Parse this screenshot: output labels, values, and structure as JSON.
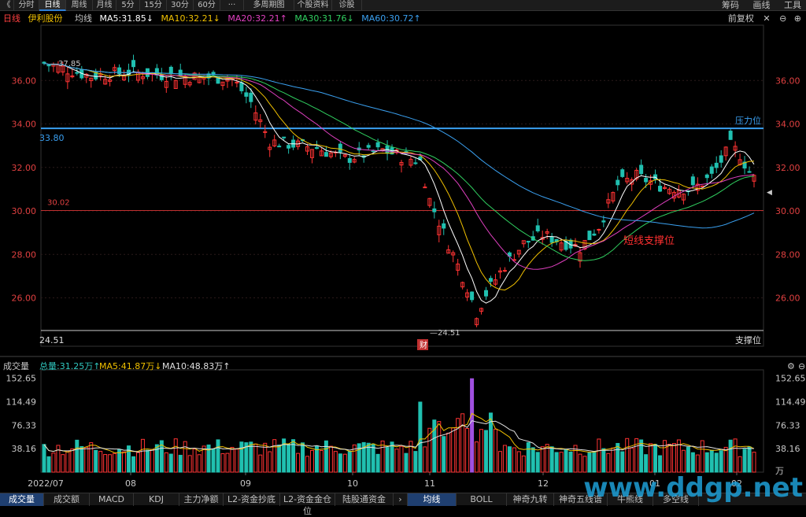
{
  "toolbar": {
    "back": "《",
    "tabs": [
      "分时",
      "日线",
      "周线",
      "月线",
      "5分",
      "15分",
      "30分",
      "60分",
      "···",
      "多周期图",
      "个股资料",
      "诊股"
    ],
    "active_index": 1,
    "right": [
      "筹码",
      "画线",
      "工具"
    ]
  },
  "info": {
    "period": "日线",
    "stock": "伊利股份",
    "ma_label": "均线",
    "ma5": "MA5:31.85↓",
    "ma10": "MA10:32.21↓",
    "ma20": "MA20:32.21↑",
    "ma30": "MA30:31.76↓",
    "ma60": "MA60:30.72↑",
    "fq": "前复权",
    "colors": {
      "ma5": "#ffffff",
      "ma10": "#f0c000",
      "ma20": "#e040c0",
      "ma30": "#30d060",
      "ma60": "#3aa0f0"
    }
  },
  "price_panel": {
    "y_ticks": [
      "36.00",
      "34.00",
      "32.00",
      "30.00",
      "28.00",
      "26.00"
    ],
    "tick_values": [
      36,
      34,
      32,
      30,
      28,
      26
    ],
    "ylim": [
      24.5,
      38.4
    ],
    "high_label": "37.85",
    "low_label": "24.51",
    "low_marker": "24.51",
    "pressure_value": "33.80",
    "pressure_text": "压力位",
    "support_value": "30.02",
    "support_text": "支撑位",
    "short_support": "短线支撑位",
    "fin_badge": "财"
  },
  "volume_panel": {
    "title": "成交量",
    "total": "总量:31.25万↑",
    "ma5": "MA5:41.87万↓",
    "ma10": "MA10:48.83万↑",
    "y_ticks": [
      "152.65",
      "114.49",
      "76.33",
      "38.16"
    ],
    "tick_values": [
      152.65,
      114.49,
      76.33,
      38.16
    ],
    "unit": "万"
  },
  "x_axis": {
    "labels": [
      "2022/07",
      "08",
      "09",
      "10",
      "11",
      "12",
      "01",
      "02"
    ]
  },
  "bottom_tabs": [
    "成交量",
    "成交额",
    "MACD",
    "KDJ",
    "主力净额",
    "L2-资金抄底",
    "L2-资金金仓位",
    "陆股通资金",
    "均线",
    "BOLL",
    "神奇九转",
    "神奇五线谱",
    "牛熊线",
    "多空线"
  ],
  "watermark": "www.ddgp.net"
}
